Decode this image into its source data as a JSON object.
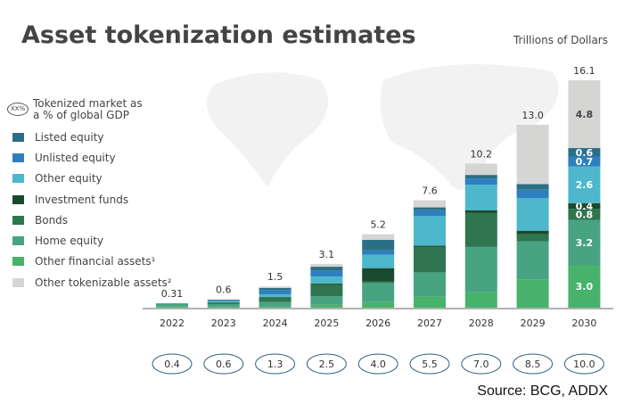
{
  "title": "Asset tokenization estimates",
  "unit_label": "Trillions of Dollars",
  "source": "Source: BCG, ADDX",
  "legend": {
    "gdp_marker": "XX%",
    "gdp_label": "Tokenized market as a % of global GDP"
  },
  "chart_data": {
    "type": "bar",
    "stacked": true,
    "categories": [
      "2022",
      "2023",
      "2024",
      "2025",
      "2026",
      "2027",
      "2028",
      "2029",
      "2030"
    ],
    "totals": [
      "0.31",
      "0.6",
      "1.5",
      "3.1",
      "5.2",
      "7.6",
      "10.2",
      "13.0",
      "16.1"
    ],
    "gdp_percent": [
      "0.4",
      "0.6",
      "1.3",
      "2.5",
      "4.0",
      "5.5",
      "7.0",
      "8.5",
      "10.0"
    ],
    "legend_placement": "left",
    "grid": false,
    "series": [
      {
        "name": "Other financial assets¹",
        "color": "#47b36a",
        "values": [
          0.11,
          0.1,
          0.1,
          0.2,
          0.4,
          0.8,
          1.1,
          2.0,
          3.0
        ]
      },
      {
        "name": "Home equity",
        "color": "#48a383",
        "values": [
          0.2,
          0.15,
          0.3,
          0.6,
          1.35,
          1.7,
          3.2,
          2.7,
          3.2
        ]
      },
      {
        "name": "Bonds",
        "color": "#2e7550",
        "values": [
          0,
          0.1,
          0.3,
          0.8,
          0.1,
          1.8,
          2.4,
          0.5,
          0.8
        ]
      },
      {
        "name": "Investment funds",
        "color": "#1a4a2e",
        "values": [
          0,
          0.02,
          0.05,
          0.1,
          0.95,
          0.1,
          0.2,
          0.25,
          0.4
        ]
      },
      {
        "name": "Other equity",
        "color": "#4db8cc",
        "values": [
          0,
          0.08,
          0.2,
          0.5,
          0.95,
          2.1,
          1.8,
          2.3,
          2.6
        ]
      },
      {
        "name": "Unlisted equity",
        "color": "#2e7fc0",
        "values": [
          0,
          0.05,
          0.3,
          0.4,
          0.3,
          0.4,
          0.45,
          0.6,
          0.7
        ]
      },
      {
        "name": "Listed equity",
        "color": "#2b6f86",
        "values": [
          0,
          0.06,
          0.15,
          0.3,
          0.75,
          0.2,
          0.25,
          0.4,
          0.6
        ]
      },
      {
        "name": "Other tokenizable assets²",
        "color": "#d5d5d3",
        "values": [
          0,
          0.04,
          0.1,
          0.2,
          0.4,
          0.5,
          0.8,
          4.2,
          4.8
        ]
      }
    ],
    "segment_labels_2030": [
      "3.0",
      "3.2",
      "0.8",
      "0.4",
      "2.6",
      "0.7",
      "0.6",
      "4.8"
    ],
    "ylim": [
      0,
      16.1
    ]
  }
}
